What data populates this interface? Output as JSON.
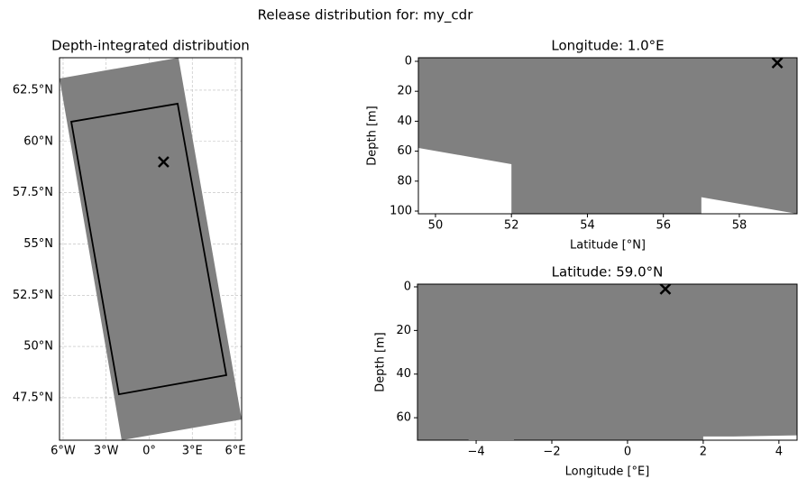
{
  "figure_title": "Release distribution for: my_cdr",
  "chart_data": [
    {
      "type": "map",
      "title": "Depth-integrated distribution",
      "xlim": [
        -6.25,
        6.44
      ],
      "ylim": [
        45.43,
        64.08
      ],
      "xticks": [
        {
          "value": -6,
          "label": "6°W"
        },
        {
          "value": -3,
          "label": "3°W"
        },
        {
          "value": 0,
          "label": "0°"
        },
        {
          "value": 3,
          "label": "3°E"
        },
        {
          "value": 6,
          "label": "6°E"
        }
      ],
      "yticks": [
        {
          "value": 47.5,
          "label": "47.5°N"
        },
        {
          "value": 50,
          "label": "50°N"
        },
        {
          "value": 52.5,
          "label": "52.5°N"
        },
        {
          "value": 55,
          "label": "55°N"
        },
        {
          "value": 57.5,
          "label": "57.5°N"
        },
        {
          "value": 60,
          "label": "60°N"
        },
        {
          "value": 62.5,
          "label": "62.5°N"
        }
      ],
      "grid": true,
      "domain": {
        "lon": [
          -6.25,
          2.04,
          6.44,
          -1.92
        ],
        "lat": [
          63.07,
          64.08,
          46.44,
          45.43
        ],
        "color": "#808080"
      },
      "release_area": {
        "lon": [
          -5.43,
          1.98,
          5.37,
          -2.11
        ],
        "lat": [
          60.96,
          61.84,
          48.6,
          47.67
        ],
        "color": "#000000"
      },
      "release_point": {
        "x": 1.0,
        "y": 59.0,
        "color": "#000000"
      }
    },
    {
      "type": "section",
      "title": "Longitude: 1.0°E",
      "xlabel": "Latitude [°N]",
      "ylabel": "Depth [m]",
      "xlim": [
        49.55,
        59.52
      ],
      "ylim": [
        101.8,
        -2.4
      ],
      "xticks": [
        50,
        52,
        54,
        56,
        58
      ],
      "yticks": [
        0,
        20,
        40,
        60,
        80,
        100
      ],
      "profile": {
        "x": [
          49.55,
          52.0,
          52.0,
          57.0,
          57.0,
          59.52
        ],
        "y": [
          57.8,
          68.7,
          101.8,
          101.8,
          90.7,
          101.8
        ],
        "color": "#808080"
      },
      "release_point": {
        "x": 59.0,
        "y": 1,
        "color": "#000000"
      }
    },
    {
      "type": "section",
      "title": "Latitude: 59.0°N",
      "xlabel": "Longitude [°E]",
      "ylabel": "Depth [m]",
      "xlim": [
        -5.55,
        4.48
      ],
      "ylim": [
        70.3,
        -1.24
      ],
      "xticks": [
        {
          "value": -4,
          "label": "−4"
        },
        {
          "value": -2,
          "label": "−2"
        },
        0,
        2,
        4
      ],
      "yticks": [
        0,
        20,
        40,
        60
      ],
      "profile": {
        "x": [
          -5.55,
          -4.2,
          -4.2,
          -3.0,
          -3.0,
          2.0,
          2.0,
          2.8,
          4.48
        ],
        "y": [
          70.3,
          70.3,
          69.9,
          69.9,
          70.3,
          70.3,
          68.6,
          68.6,
          68.1
        ],
        "color": "#808080"
      },
      "release_point": {
        "x": 1.0,
        "y": 1,
        "color": "#000000"
      }
    }
  ]
}
